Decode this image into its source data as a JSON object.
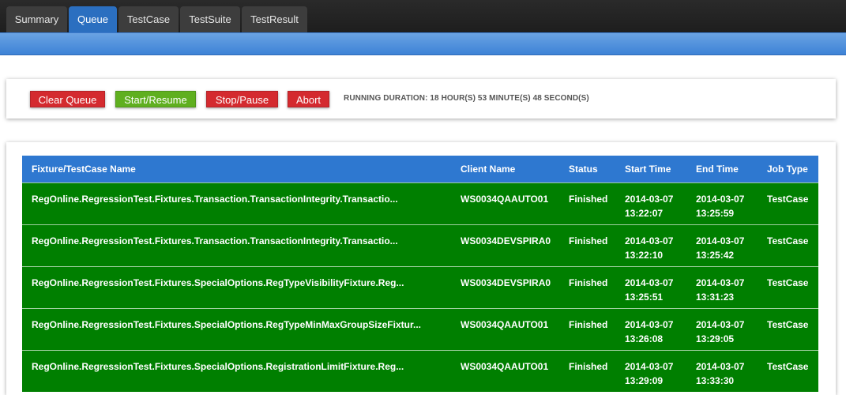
{
  "tabs": [
    {
      "label": "Summary"
    },
    {
      "label": "Queue"
    },
    {
      "label": "TestCase"
    },
    {
      "label": "TestSuite"
    },
    {
      "label": "TestResult"
    }
  ],
  "active_tab": "Queue",
  "toolbar": {
    "clear_queue": "Clear Queue",
    "start_resume": "Start/Resume",
    "stop_pause": "Stop/Pause",
    "abort": "Abort",
    "running_duration": "RUNNING DURATION: 18 HOUR(S) 53 MINUTE(S) 48 SECOND(S)"
  },
  "table": {
    "headers": [
      "Fixture/TestCase Name",
      "Client Name",
      "Status",
      "Start Time",
      "End Time",
      "Job Type"
    ],
    "rows": [
      {
        "name": "RegOnline.RegressionTest.Fixtures.Transaction.TransactionIntegrity.Transactio...",
        "client": "WS0034QAAUTO01",
        "status": "Finished",
        "start_date": "2014-03-07",
        "start_time": "13:22:07",
        "end_date": "2014-03-07",
        "end_time": "13:25:59",
        "type": "TestCase"
      },
      {
        "name": "RegOnline.RegressionTest.Fixtures.Transaction.TransactionIntegrity.Transactio...",
        "client": "WS0034DEVSPIRA0",
        "status": "Finished",
        "start_date": "2014-03-07",
        "start_time": "13:22:10",
        "end_date": "2014-03-07",
        "end_time": "13:25:42",
        "type": "TestCase"
      },
      {
        "name": "RegOnline.RegressionTest.Fixtures.SpecialOptions.RegTypeVisibilityFixture.Reg...",
        "client": "WS0034DEVSPIRA0",
        "status": "Finished",
        "start_date": "2014-03-07",
        "start_time": "13:25:51",
        "end_date": "2014-03-07",
        "end_time": "13:31:23",
        "type": "TestCase"
      },
      {
        "name": "RegOnline.RegressionTest.Fixtures.SpecialOptions.RegTypeMinMaxGroupSizeFixtur...",
        "client": "WS0034QAAUTO01",
        "status": "Finished",
        "start_date": "2014-03-07",
        "start_time": "13:26:08",
        "end_date": "2014-03-07",
        "end_time": "13:29:05",
        "type": "TestCase"
      },
      {
        "name": "RegOnline.RegressionTest.Fixtures.SpecialOptions.RegistrationLimitFixture.Reg...",
        "client": "WS0034QAAUTO01",
        "status": "Finished",
        "start_date": "2014-03-07",
        "start_time": "13:29:09",
        "end_date": "2014-03-07",
        "end_time": "13:33:30",
        "type": "TestCase"
      }
    ]
  },
  "colors": {
    "row_finished": "#007f00",
    "header": "#2e78d0",
    "danger": "#d42a2f",
    "success": "#5faf1f"
  }
}
